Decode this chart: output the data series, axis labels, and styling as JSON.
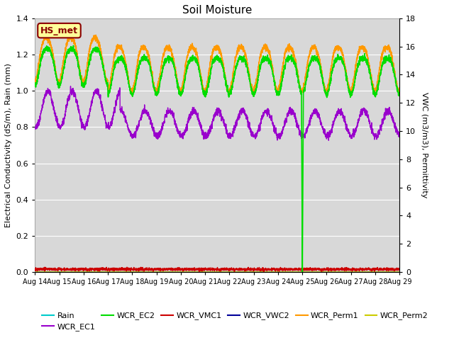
{
  "title": "Soil Moisture",
  "ylabel_left": "Electrical Conductivity (dS/m), Rain (mm)",
  "ylabel_right": "VWC (m3/m3), Permittivity",
  "ylim_left": [
    0,
    1.4
  ],
  "ylim_right": [
    0,
    18
  ],
  "yticks_left": [
    0.0,
    0.2,
    0.4,
    0.6,
    0.8,
    1.0,
    1.2,
    1.4
  ],
  "yticks_right": [
    0,
    2,
    4,
    6,
    8,
    10,
    12,
    14,
    16,
    18
  ],
  "date_labels": [
    "Aug 14",
    "Aug 15",
    "Aug 16",
    "Aug 17",
    "Aug 18",
    "Aug 19",
    "Aug 20",
    "Aug 21",
    "Aug 22",
    "Aug 23",
    "Aug 24",
    "Aug 25",
    "Aug 26",
    "Aug 27",
    "Aug 28",
    "Aug 29"
  ],
  "station_label": "HS_met",
  "colors": {
    "Rain": "#00cccc",
    "WCR_EC1": "#9900cc",
    "WCR_EC2": "#00dd00",
    "WCR_VMC1": "#cc0000",
    "WCR_VWC2": "#000099",
    "WCR_Perm1": "#ff9900",
    "WCR_Perm2": "#cccc00"
  },
  "bg_color": "#d8d8d8",
  "grid_color": "#ffffff"
}
